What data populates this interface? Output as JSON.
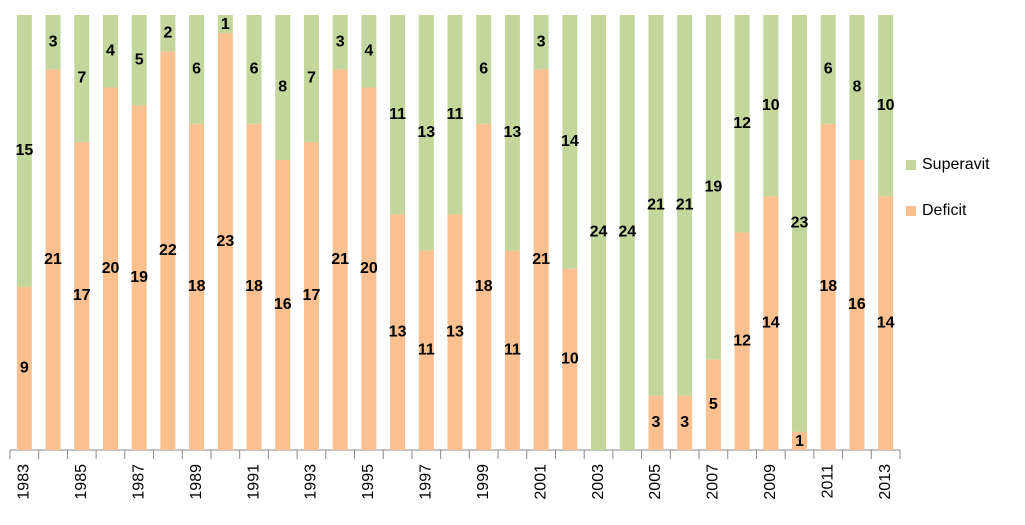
{
  "chart_data": {
    "type": "stacked_bar_100",
    "categories": [
      "1983",
      null,
      "1985",
      null,
      "1987",
      null,
      "1989",
      null,
      "1991",
      null,
      "1993",
      null,
      "1995",
      null,
      "1997",
      null,
      "1999",
      null,
      "2001",
      null,
      "2003",
      null,
      "2005",
      null,
      "2007",
      null,
      "2009",
      null,
      "2011",
      null,
      "2013"
    ],
    "series": [
      {
        "name": "Deficit",
        "color": "#fac090",
        "values": [
          9,
          21,
          17,
          20,
          19,
          22,
          18,
          23,
          18,
          16,
          17,
          21,
          20,
          13,
          11,
          13,
          18,
          11,
          21,
          10,
          null,
          null,
          3,
          3,
          5,
          12,
          14,
          1,
          18,
          16,
          14
        ]
      },
      {
        "name": "Superavit",
        "color": "#c3d69b",
        "values": [
          15,
          3,
          7,
          4,
          5,
          2,
          6,
          1,
          6,
          8,
          7,
          3,
          4,
          11,
          13,
          11,
          6,
          13,
          3,
          14,
          24,
          24,
          21,
          21,
          19,
          12,
          10,
          23,
          6,
          8,
          10
        ]
      }
    ],
    "legend": "right"
  }
}
